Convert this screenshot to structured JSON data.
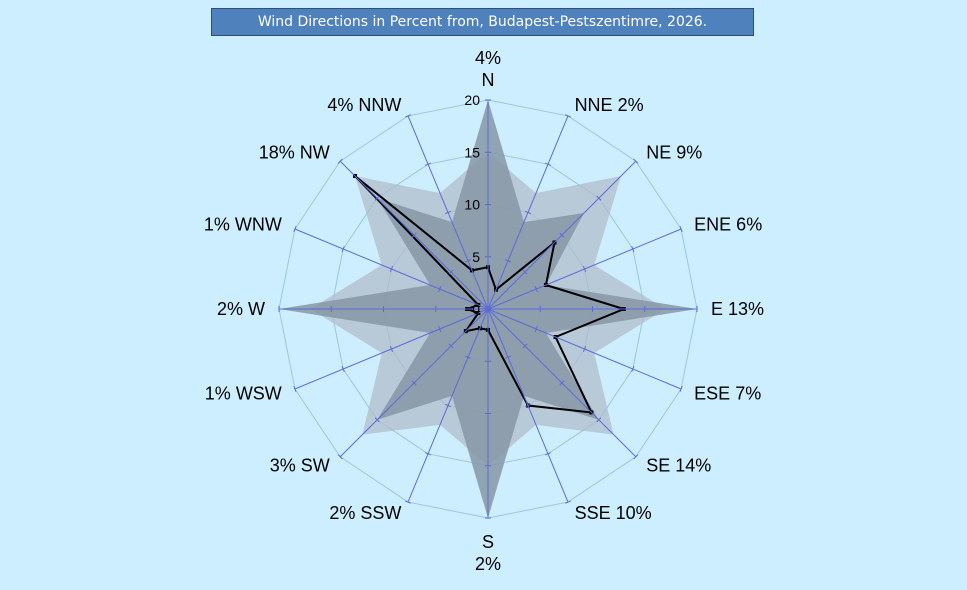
{
  "chart_data": {
    "type": "radar",
    "title": "Wind Directions in Percent from, Budapest-Pestszentimre,  2026.",
    "axis": {
      "min": 0,
      "max": 20,
      "ticks": [
        "0",
        "5",
        "10",
        "15",
        "20"
      ]
    },
    "directions": [
      "N",
      "NNE",
      "NE",
      "ENE",
      "E",
      "ESE",
      "SE",
      "SSE",
      "S",
      "SSW",
      "SW",
      "WSW",
      "W",
      "WNW",
      "NW",
      "NNW"
    ],
    "percent_labels": [
      "4%",
      "2%",
      "9%",
      "6%",
      "13%",
      "7%",
      "14%",
      "10%",
      "2%",
      "2%",
      "3%",
      "1%",
      "2%",
      "1%",
      "18%",
      "4%"
    ],
    "series": [
      {
        "color": "#b0bccb",
        "values": [
          15,
          12,
          18,
          11,
          17,
          11,
          17,
          12,
          15,
          12,
          17,
          11,
          17,
          11,
          18,
          12
        ]
      },
      {
        "color": "#8696a6",
        "values": [
          20,
          9,
          13,
          6,
          20,
          6,
          15,
          9,
          20,
          9,
          15,
          6,
          20,
          6,
          15,
          9
        ]
      },
      {
        "color": "#000000",
        "values": [
          4,
          2,
          9,
          6,
          13,
          7,
          14,
          10,
          2,
          2,
          3,
          1,
          2,
          1,
          18,
          4
        ]
      }
    ]
  }
}
